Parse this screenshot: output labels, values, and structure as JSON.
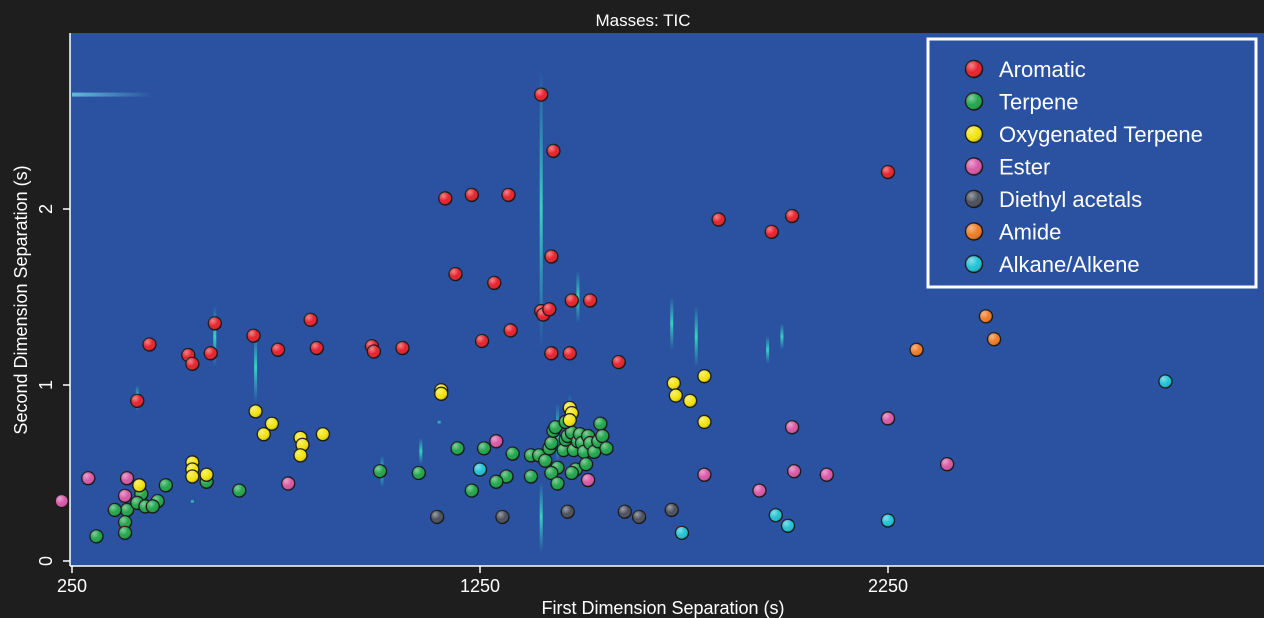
{
  "chart_data": {
    "type": "scatter",
    "title": "Masses: TIC",
    "xlabel": "First Dimension Separation (s)",
    "ylabel": "Second Dimension Separation (s)",
    "xlim": [
      250,
      3200
    ],
    "ylim": [
      0,
      3.0
    ],
    "x_ticks": [
      250,
      1250,
      2250
    ],
    "y_ticks": [
      0,
      1,
      2
    ],
    "x_tick_labels": [
      "250",
      "1250",
      "2250"
    ],
    "y_tick_labels": [
      "0",
      "1",
      "2"
    ],
    "plot_background": "#2a52a0",
    "frame_color": "#1e1e1e",
    "legend_position": "top-right",
    "grid": false,
    "series": [
      {
        "name": "Aromatic",
        "color": "#e8202a",
        "points": [
          [
            1400,
            2.65
          ],
          [
            1430,
            2.33
          ],
          [
            1165,
            2.06
          ],
          [
            1230,
            2.08
          ],
          [
            1320,
            2.08
          ],
          [
            2250,
            2.21
          ],
          [
            1835,
            1.94
          ],
          [
            1965,
            1.87
          ],
          [
            2015,
            1.96
          ],
          [
            1425,
            1.73
          ],
          [
            1190,
            1.63
          ],
          [
            1285,
            1.58
          ],
          [
            1400,
            1.42
          ],
          [
            1405,
            1.4
          ],
          [
            1420,
            1.43
          ],
          [
            1475,
            1.48
          ],
          [
            1520,
            1.48
          ],
          [
            600,
            1.35
          ],
          [
            835,
            1.37
          ],
          [
            1325,
            1.31
          ],
          [
            1255,
            1.25
          ],
          [
            440,
            1.23
          ],
          [
            535,
            1.17
          ],
          [
            545,
            1.12
          ],
          [
            590,
            1.18
          ],
          [
            695,
            1.28
          ],
          [
            755,
            1.2
          ],
          [
            850,
            1.21
          ],
          [
            985,
            1.22
          ],
          [
            990,
            1.19
          ],
          [
            1060,
            1.21
          ],
          [
            1425,
            1.18
          ],
          [
            1470,
            1.18
          ],
          [
            1590,
            1.13
          ],
          [
            410,
            0.91
          ]
        ]
      },
      {
        "name": "Terpene",
        "color": "#1fa64a",
        "points": [
          [
            1195,
            0.64
          ],
          [
            1260,
            0.64
          ],
          [
            1330,
            0.61
          ],
          [
            1375,
            0.6
          ],
          [
            1395,
            0.6
          ],
          [
            1410,
            0.57
          ],
          [
            1420,
            0.64
          ],
          [
            1425,
            0.67
          ],
          [
            1430,
            0.74
          ],
          [
            1435,
            0.76
          ],
          [
            1440,
            0.53
          ],
          [
            1455,
            0.63
          ],
          [
            1460,
            0.69
          ],
          [
            1465,
            0.71
          ],
          [
            1475,
            0.73
          ],
          [
            1480,
            0.63
          ],
          [
            1485,
            0.52
          ],
          [
            1490,
            0.68
          ],
          [
            1495,
            0.72
          ],
          [
            1500,
            0.67
          ],
          [
            1505,
            0.62
          ],
          [
            1510,
            0.55
          ],
          [
            1515,
            0.71
          ],
          [
            1520,
            0.67
          ],
          [
            1530,
            0.62
          ],
          [
            1540,
            0.68
          ],
          [
            1545,
            0.78
          ],
          [
            1550,
            0.71
          ],
          [
            1560,
            0.64
          ],
          [
            1460,
            0.79
          ],
          [
            1425,
            0.5
          ],
          [
            1440,
            0.44
          ],
          [
            1475,
            0.5
          ],
          [
            1375,
            0.48
          ],
          [
            1315,
            0.48
          ],
          [
            1290,
            0.45
          ],
          [
            1230,
            0.4
          ],
          [
            1100,
            0.5
          ],
          [
            1005,
            0.51
          ],
          [
            660,
            0.4
          ],
          [
            580,
            0.45
          ],
          [
            480,
            0.43
          ],
          [
            460,
            0.34
          ],
          [
            420,
            0.38
          ],
          [
            385,
            0.29
          ],
          [
            410,
            0.33
          ],
          [
            430,
            0.31
          ],
          [
            448,
            0.31
          ],
          [
            355,
            0.29
          ],
          [
            380,
            0.22
          ],
          [
            380,
            0.16
          ],
          [
            310,
            0.14
          ]
        ]
      },
      {
        "name": "Oxygenated Terpene",
        "color": "#f2e40c",
        "points": [
          [
            1155,
            0.97
          ],
          [
            1155,
            0.95
          ],
          [
            1725,
            1.01
          ],
          [
            1765,
            0.91
          ],
          [
            1800,
            1.05
          ],
          [
            1730,
            0.94
          ],
          [
            1800,
            0.79
          ],
          [
            1470,
            0.87
          ],
          [
            1475,
            0.84
          ],
          [
            1470,
            0.8
          ],
          [
            700,
            0.85
          ],
          [
            720,
            0.72
          ],
          [
            740,
            0.78
          ],
          [
            810,
            0.7
          ],
          [
            815,
            0.66
          ],
          [
            810,
            0.6
          ],
          [
            865,
            0.72
          ],
          [
            545,
            0.56
          ],
          [
            545,
            0.52
          ],
          [
            545,
            0.48
          ],
          [
            580,
            0.49
          ],
          [
            415,
            0.43
          ]
        ]
      },
      {
        "name": "Ester",
        "color": "#d957a6",
        "points": [
          [
            2250,
            0.81
          ],
          [
            2015,
            0.76
          ],
          [
            2395,
            0.55
          ],
          [
            2020,
            0.51
          ],
          [
            2100,
            0.49
          ],
          [
            1935,
            0.4
          ],
          [
            1800,
            0.49
          ],
          [
            1290,
            0.68
          ],
          [
            1515,
            0.46
          ],
          [
            780,
            0.44
          ],
          [
            385,
            0.47
          ],
          [
            380,
            0.37
          ],
          [
            290,
            0.47
          ],
          [
            225,
            0.34
          ]
        ]
      },
      {
        "name": "Diethyl acetals",
        "color": "#4a4f5c",
        "points": [
          [
            1145,
            0.25
          ],
          [
            1305,
            0.25
          ],
          [
            1465,
            0.28
          ],
          [
            1605,
            0.28
          ],
          [
            1640,
            0.25
          ],
          [
            1720,
            0.29
          ]
        ]
      },
      {
        "name": "Amide",
        "color": "#f07b25",
        "points": [
          [
            2490,
            1.39
          ],
          [
            2510,
            1.26
          ],
          [
            2320,
            1.2
          ]
        ]
      },
      {
        "name": "Alkane/Alkene",
        "color": "#1ec3d6",
        "points": [
          [
            2930,
            1.02
          ],
          [
            1250,
            0.52
          ],
          [
            1975,
            0.26
          ],
          [
            2005,
            0.2
          ],
          [
            1745,
            0.16
          ],
          [
            2250,
            0.23
          ]
        ]
      }
    ]
  }
}
